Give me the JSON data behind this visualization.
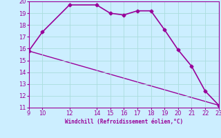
{
  "xlabel": "Windchill (Refroidissement éolien,°C)",
  "line1_x": [
    9,
    10,
    12,
    14,
    15,
    16,
    17,
    18,
    19,
    20,
    21,
    22,
    23
  ],
  "line1_y": [
    15.8,
    17.4,
    19.7,
    19.7,
    19.0,
    18.85,
    19.2,
    19.2,
    17.6,
    15.9,
    14.5,
    12.4,
    11.2
  ],
  "line2_x": [
    9,
    23
  ],
  "line2_y": [
    15.8,
    11.2
  ],
  "color": "#990099",
  "bg_color": "#cceeff",
  "grid_color": "#aadddd",
  "xlim": [
    9,
    23
  ],
  "ylim": [
    11,
    20
  ],
  "xticks": [
    9,
    10,
    12,
    14,
    15,
    16,
    17,
    18,
    19,
    20,
    21,
    22,
    23
  ],
  "yticks": [
    11,
    12,
    13,
    14,
    15,
    16,
    17,
    18,
    19,
    20
  ],
  "tick_color": "#990099",
  "label_color": "#990099",
  "title_color": "#990099",
  "tick_labelsize": 6,
  "xlabel_fontsize": 5.5,
  "marker": "D",
  "markersize": 2.5,
  "linewidth1": 1.2,
  "linewidth2": 1.0
}
